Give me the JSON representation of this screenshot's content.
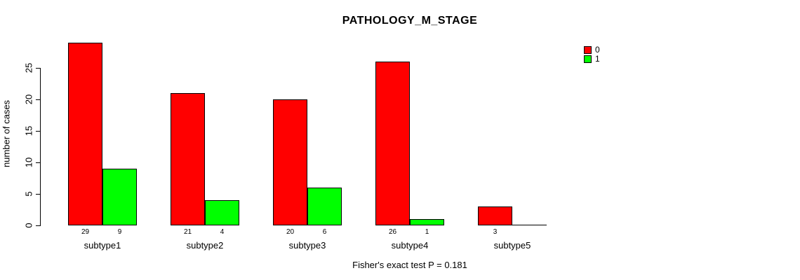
{
  "title": "PATHOLOGY_M_STAGE",
  "footer": "Fisher's exact test P = 0.181",
  "colors": {
    "series0": "#ff0000",
    "series1": "#00ff00",
    "axis": "#000000",
    "background": "#ffffff"
  },
  "legend": {
    "position": "top-right",
    "items": [
      {
        "label": "0",
        "color": "#ff0000"
      },
      {
        "label": "1",
        "color": "#00ff00"
      }
    ]
  },
  "chart_data": {
    "type": "bar",
    "title": "PATHOLOGY_M_STAGE",
    "xlabel": "",
    "ylabel": "number of cases",
    "categories": [
      "subtype1",
      "subtype2",
      "subtype3",
      "subtype4",
      "subtype5"
    ],
    "series": [
      {
        "name": "0",
        "color": "#ff0000",
        "values": [
          29,
          21,
          20,
          26,
          3
        ]
      },
      {
        "name": "1",
        "color": "#00ff00",
        "values": [
          9,
          4,
          6,
          1,
          0
        ]
      }
    ],
    "bar_value_labels": [
      [
        "29",
        "9"
      ],
      [
        "21",
        "4"
      ],
      [
        "20",
        "6"
      ],
      [
        "26",
        "1"
      ],
      [
        "3",
        ""
      ]
    ],
    "ylim": [
      0,
      29
    ],
    "yticks": [
      0,
      5,
      10,
      15,
      20,
      25
    ],
    "grid": false,
    "legend_position": "top-right",
    "annotation": "Fisher's exact test P = 0.181"
  }
}
